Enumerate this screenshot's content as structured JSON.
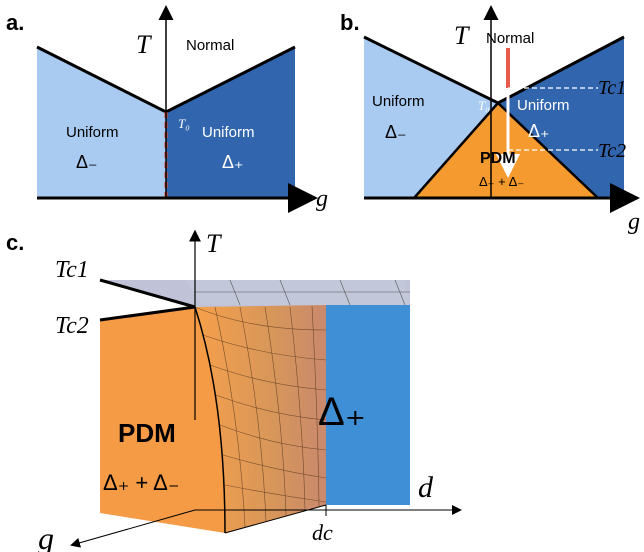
{
  "panel_a": {
    "label": "a.",
    "axis_y": "T",
    "axis_x": "g",
    "normal": "Normal",
    "uniform_left": "Uniform",
    "delta_left": "Δ₋",
    "uniform_right": "Uniform",
    "delta_right": "Δ₊",
    "t0": "T₀"
  },
  "panel_b": {
    "label": "b.",
    "axis_y": "T",
    "axis_x": "g",
    "normal": "Normal",
    "uniform_left": "Uniform",
    "delta_left": "Δ₋",
    "uniform_right": "Uniform",
    "delta_right": "Δ₊",
    "t0": "T₀",
    "pdm": "PDM",
    "pdm_sub": "Δ₊ + Δ₋",
    "tc1": "Tc1",
    "tc2": "Tc2"
  },
  "panel_c": {
    "label": "c.",
    "axis_t": "T",
    "axis_g": "g",
    "axis_d": "d",
    "tc1": "Tc1",
    "tc2": "Tc2",
    "pdm": "PDM",
    "pdm_sub": "Δ₊ + Δ₋",
    "delta_plus": "Δ₊",
    "dc": "dc"
  },
  "colors": {
    "light_blue": "#aacbf1",
    "dark_blue": "#3166ae",
    "orange": "#f49a2e",
    "cube_blue": "#3f8fd6",
    "top_gray": "#b9bdd3",
    "dashed_red": "#e3452b"
  }
}
